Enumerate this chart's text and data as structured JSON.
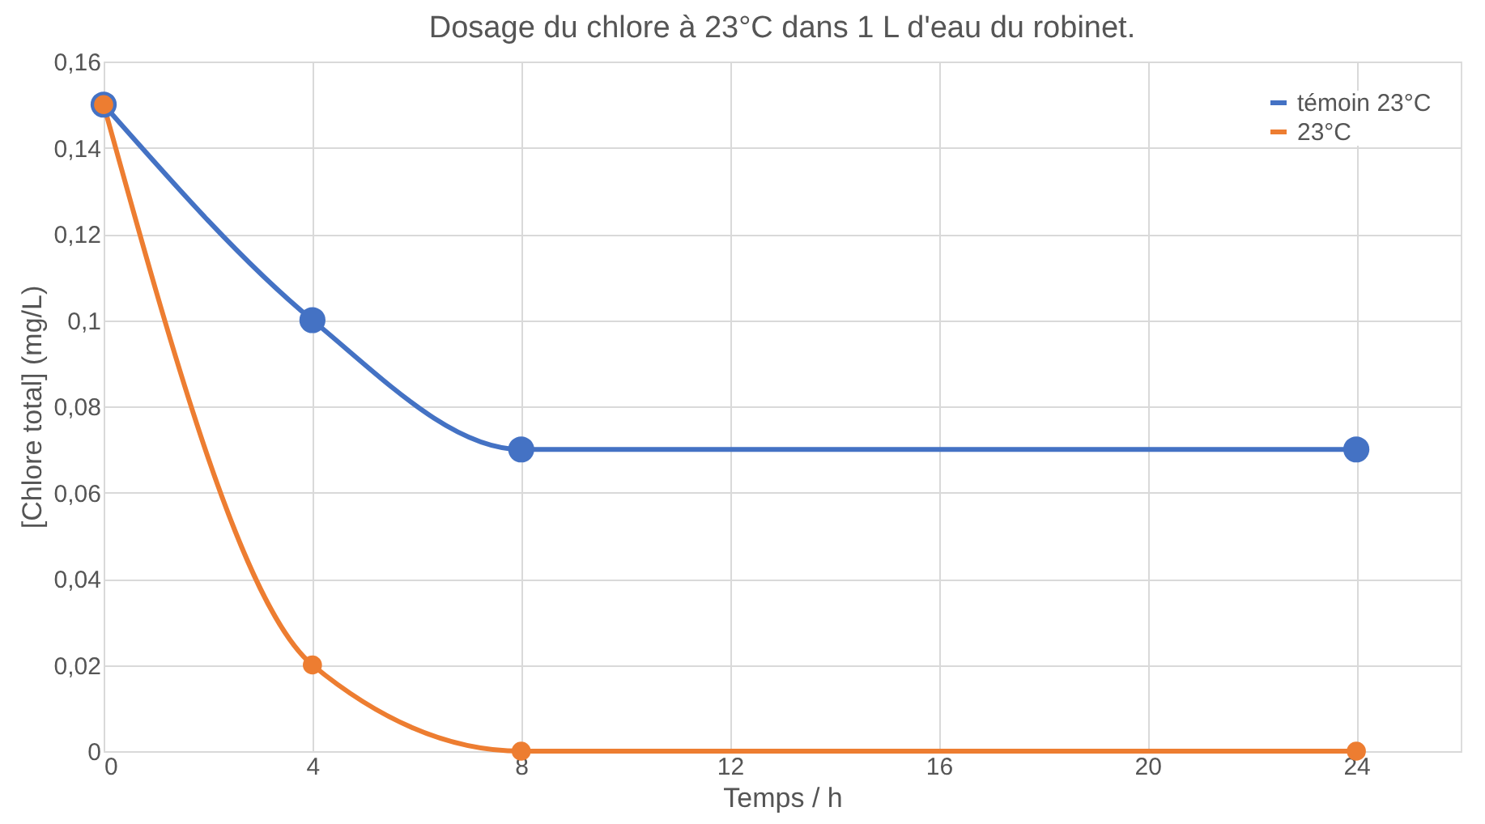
{
  "chart_data": {
    "type": "line",
    "title": "Dosage du chlore à 23°C dans 1 L d'eau du robinet.",
    "xlabel": "Temps / h",
    "ylabel": "[Chlore total] (mg/L)",
    "x": [
      0,
      4,
      8,
      24
    ],
    "series": [
      {
        "name": "témoin 23°C",
        "color": "#4472c4",
        "values": [
          0.15,
          0.1,
          0.07,
          0.07
        ]
      },
      {
        "name": "23°C",
        "color": "#ed7d31",
        "values": [
          0.15,
          0.02,
          0,
          0
        ]
      }
    ],
    "xlim": [
      0,
      26
    ],
    "xticks": [
      0,
      4,
      8,
      12,
      16,
      20,
      24
    ],
    "ylim": [
      0,
      0.16
    ],
    "yticks": [
      {
        "value": 0,
        "label": "0"
      },
      {
        "value": 0.02,
        "label": "0,02"
      },
      {
        "value": 0.04,
        "label": "0,04"
      },
      {
        "value": 0.06,
        "label": "0,06"
      },
      {
        "value": 0.08,
        "label": "0,08"
      },
      {
        "value": 0.1,
        "label": "0,1"
      },
      {
        "value": 0.12,
        "label": "0,12"
      },
      {
        "value": 0.14,
        "label": "0,14"
      },
      {
        "value": 0.16,
        "label": "0,16"
      }
    ],
    "grid": true,
    "legend": "top right",
    "marker": "circle",
    "line_style": "solid"
  }
}
